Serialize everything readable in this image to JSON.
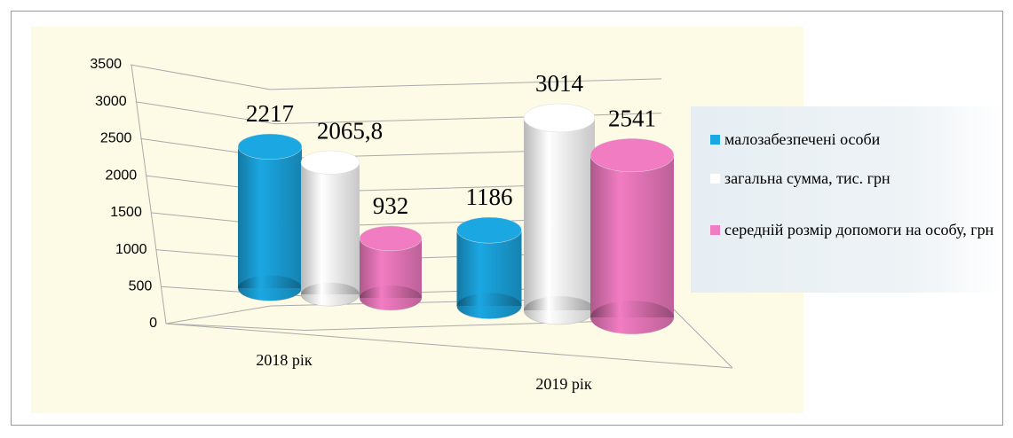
{
  "chart_data": {
    "type": "bar3d",
    "categories": [
      "2018 рік",
      "2019 рік"
    ],
    "series": [
      {
        "name": "малозабезпечені особи",
        "color": "#1ba7e2",
        "values": [
          2217,
          1186
        ]
      },
      {
        "name": "загальна сумма, тис. грн",
        "color": "#ffffff",
        "values": [
          2065.8,
          3014
        ],
        "value_labels": [
          "2065,8",
          "3014"
        ]
      },
      {
        "name": "середній розмір допомоги на особу,  грн",
        "color": "#f27cc2",
        "values": [
          932,
          2541
        ]
      }
    ],
    "ylim": [
      0,
      3500
    ],
    "yticks": [
      0,
      500,
      1000,
      1500,
      2000,
      2500,
      3000,
      3500
    ],
    "grid": true
  }
}
